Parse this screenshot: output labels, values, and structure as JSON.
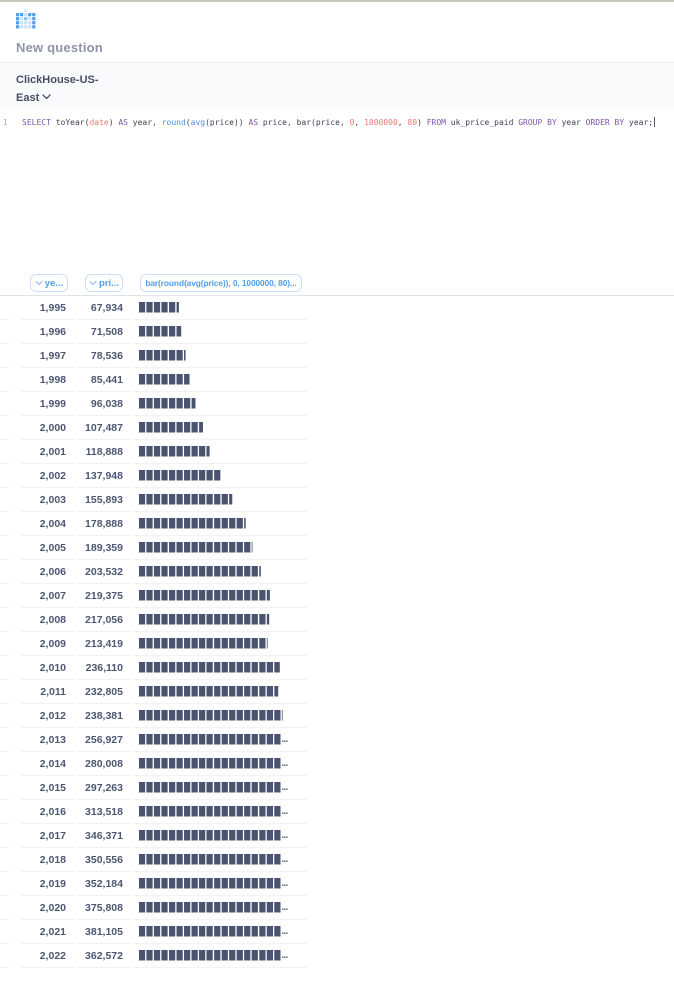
{
  "colors": {
    "brand_blue": "#509ee3",
    "bar_fill": "#4a5471",
    "keyword_purple": "#7e55ad",
    "literal_red": "#e8786f",
    "function_blue": "#4d8ed6",
    "text_navy": "#4c5773"
  },
  "header": {
    "title": "New question"
  },
  "database": {
    "name": "ClickHouse-US-East"
  },
  "editor": {
    "line_number": "1",
    "query": [
      [
        "SELECT ",
        "kw"
      ],
      [
        "toYear(",
        "pl"
      ],
      [
        "date",
        "lit"
      ],
      [
        ") ",
        "pl"
      ],
      [
        "AS",
        "kw"
      ],
      [
        " year, ",
        "pl"
      ],
      [
        "round",
        "fn"
      ],
      [
        "(",
        "pl"
      ],
      [
        "avg",
        "fn"
      ],
      [
        "(price)) ",
        "pl"
      ],
      [
        "AS",
        "kw"
      ],
      [
        " price, bar(price, ",
        "pl"
      ],
      [
        "0",
        "lit"
      ],
      [
        ", ",
        "pl"
      ],
      [
        "1000000",
        "lit"
      ],
      [
        ", ",
        "pl"
      ],
      [
        "80",
        "lit"
      ],
      [
        ") ",
        "pl"
      ],
      [
        "FROM",
        "kw"
      ],
      [
        " uk_price_paid ",
        "pl"
      ],
      [
        "GROUP BY",
        "kw"
      ],
      [
        " year ",
        "pl"
      ],
      [
        "ORDER BY",
        "kw"
      ],
      [
        " year;",
        "pl"
      ]
    ]
  },
  "results": {
    "columns": [
      {
        "label": "ye...",
        "icon": "chevron-down-icon"
      },
      {
        "label": "pri...",
        "icon": "chevron-down-icon"
      },
      {
        "label": "bar(round(avg(price)), 0, 1000000, 80)...",
        "icon": null
      }
    ],
    "rows": [
      {
        "year": "1,995",
        "price": "67,934",
        "bar": "█████▍"
      },
      {
        "year": "1,996",
        "price": "71,508",
        "bar": "█████▊"
      },
      {
        "year": "1,997",
        "price": "78,536",
        "bar": "██████▎"
      },
      {
        "year": "1,998",
        "price": "85,441",
        "bar": "██████▉"
      },
      {
        "year": "1,999",
        "price": "96,038",
        "bar": "███████▋"
      },
      {
        "year": "2,000",
        "price": "107,487",
        "bar": "████████▋"
      },
      {
        "year": "2,001",
        "price": "118,888",
        "bar": "█████████▌"
      },
      {
        "year": "2,002",
        "price": "137,948",
        "bar": "███████████"
      },
      {
        "year": "2,003",
        "price": "155,893",
        "bar": "████████████▌"
      },
      {
        "year": "2,004",
        "price": "178,888",
        "bar": "██████████████▎"
      },
      {
        "year": "2,005",
        "price": "189,359",
        "bar": "███████████████▏"
      },
      {
        "year": "2,006",
        "price": "203,532",
        "bar": "████████████████▎"
      },
      {
        "year": "2,007",
        "price": "219,375",
        "bar": "█████████████████▌"
      },
      {
        "year": "2,008",
        "price": "217,056",
        "bar": "█████████████████▍"
      },
      {
        "year": "2,009",
        "price": "213,419",
        "bar": "█████████████████▏"
      },
      {
        "year": "2,010",
        "price": "236,110",
        "bar": "██████████████████▉"
      },
      {
        "year": "2,011",
        "price": "232,805",
        "bar": "██████████████████▋"
      },
      {
        "year": "2,012",
        "price": "238,381",
        "bar": "███████████████████▏"
      },
      {
        "year": "2,013",
        "price": "256,927",
        "bar": "████████████████████▌"
      },
      {
        "year": "2,014",
        "price": "280,008",
        "bar": "██████████████████████▍"
      },
      {
        "year": "2,015",
        "price": "297,263",
        "bar": "███████████████████████▊"
      },
      {
        "year": "2,016",
        "price": "313,518",
        "bar": "█████████████████████████▏"
      },
      {
        "year": "2,017",
        "price": "346,371",
        "bar": "███████████████████████████▊"
      },
      {
        "year": "2,018",
        "price": "350,556",
        "bar": "████████████████████████████"
      },
      {
        "year": "2,019",
        "price": "352,184",
        "bar": "████████████████████████████▏"
      },
      {
        "year": "2,020",
        "price": "375,808",
        "bar": "██████████████████████████████▏"
      },
      {
        "year": "2,021",
        "price": "381,105",
        "bar": "██████████████████████████████▌"
      },
      {
        "year": "2,022",
        "price": "362,572",
        "bar": "█████████████████████████████"
      }
    ]
  }
}
